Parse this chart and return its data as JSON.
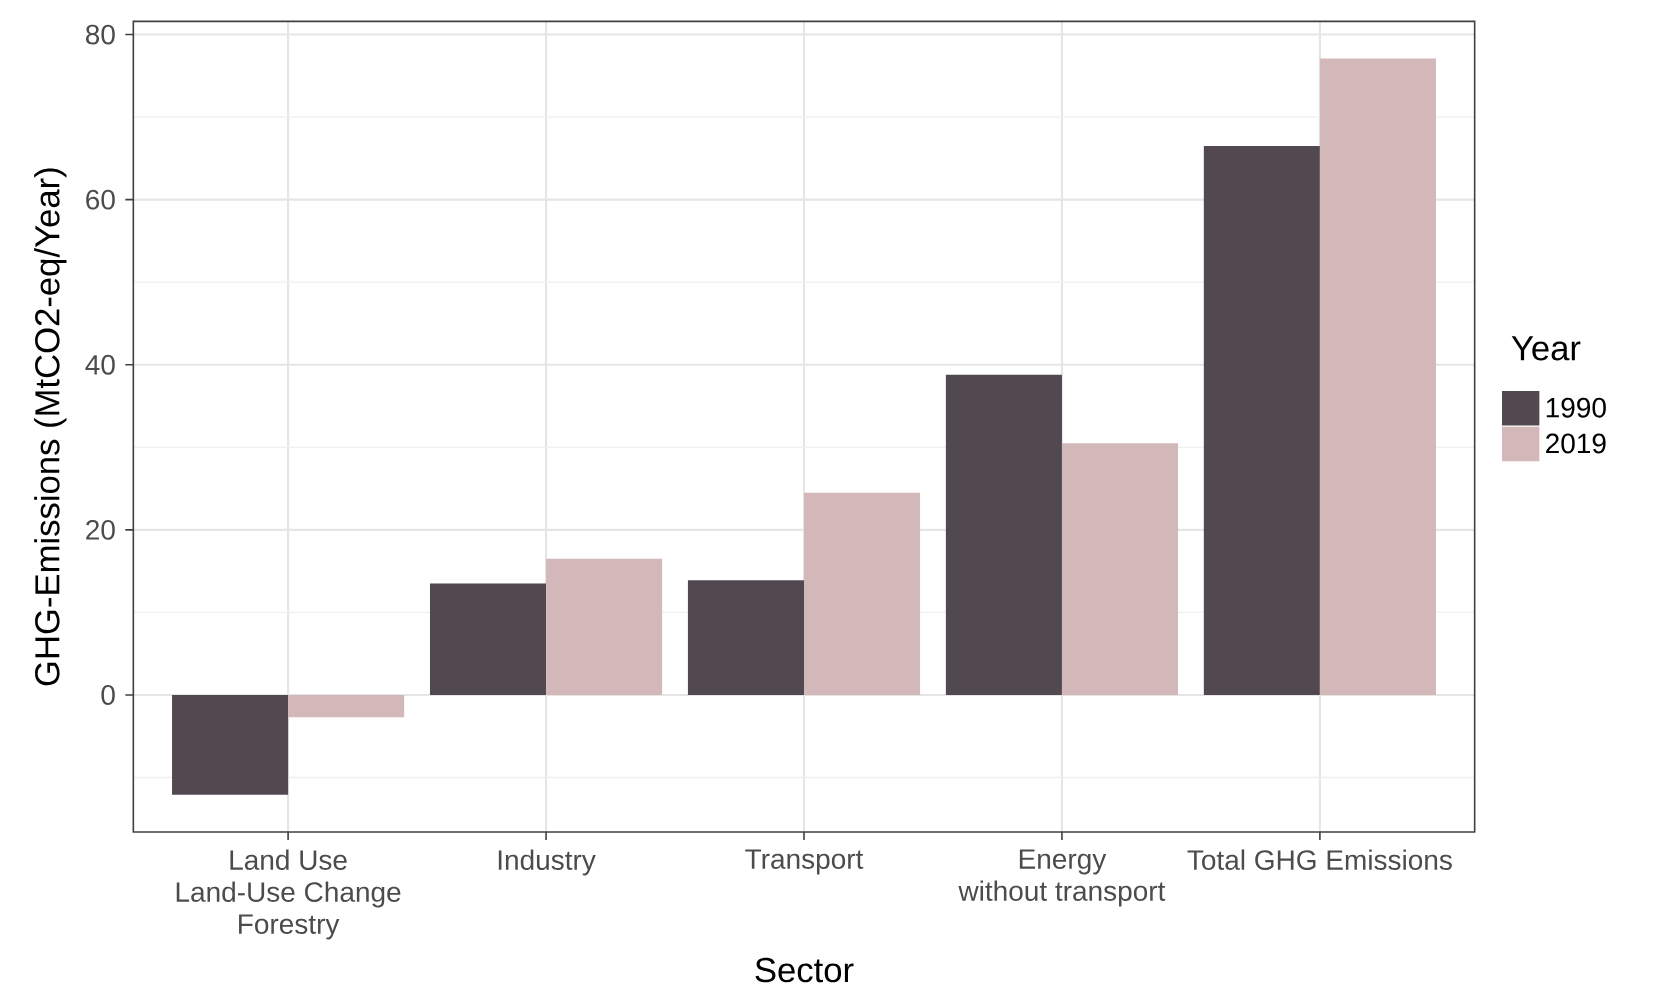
{
  "chart_data": {
    "type": "bar",
    "xlabel": "Sector",
    "ylabel": "GHG-Emissions (MtCO2-eq/Year)",
    "legend_title": "Year",
    "categories": [
      "Land Use\nLand-Use Change\nForestry",
      "Industry",
      "Transport",
      "Energy\nwithout transport",
      "Total GHG Emissions"
    ],
    "series": [
      {
        "name": "1990",
        "color": "#524950",
        "values": [
          -12.1,
          13.5,
          13.9,
          38.8,
          66.5
        ]
      },
      {
        "name": "2019",
        "color": "#d3b8b9",
        "values": [
          -2.7,
          16.5,
          24.5,
          30.5,
          77.1
        ]
      }
    ],
    "ylim": [
      -16.6,
      81.6
    ],
    "yticks": [
      0,
      20,
      40,
      60,
      80
    ],
    "grid": true,
    "legend": "right"
  }
}
